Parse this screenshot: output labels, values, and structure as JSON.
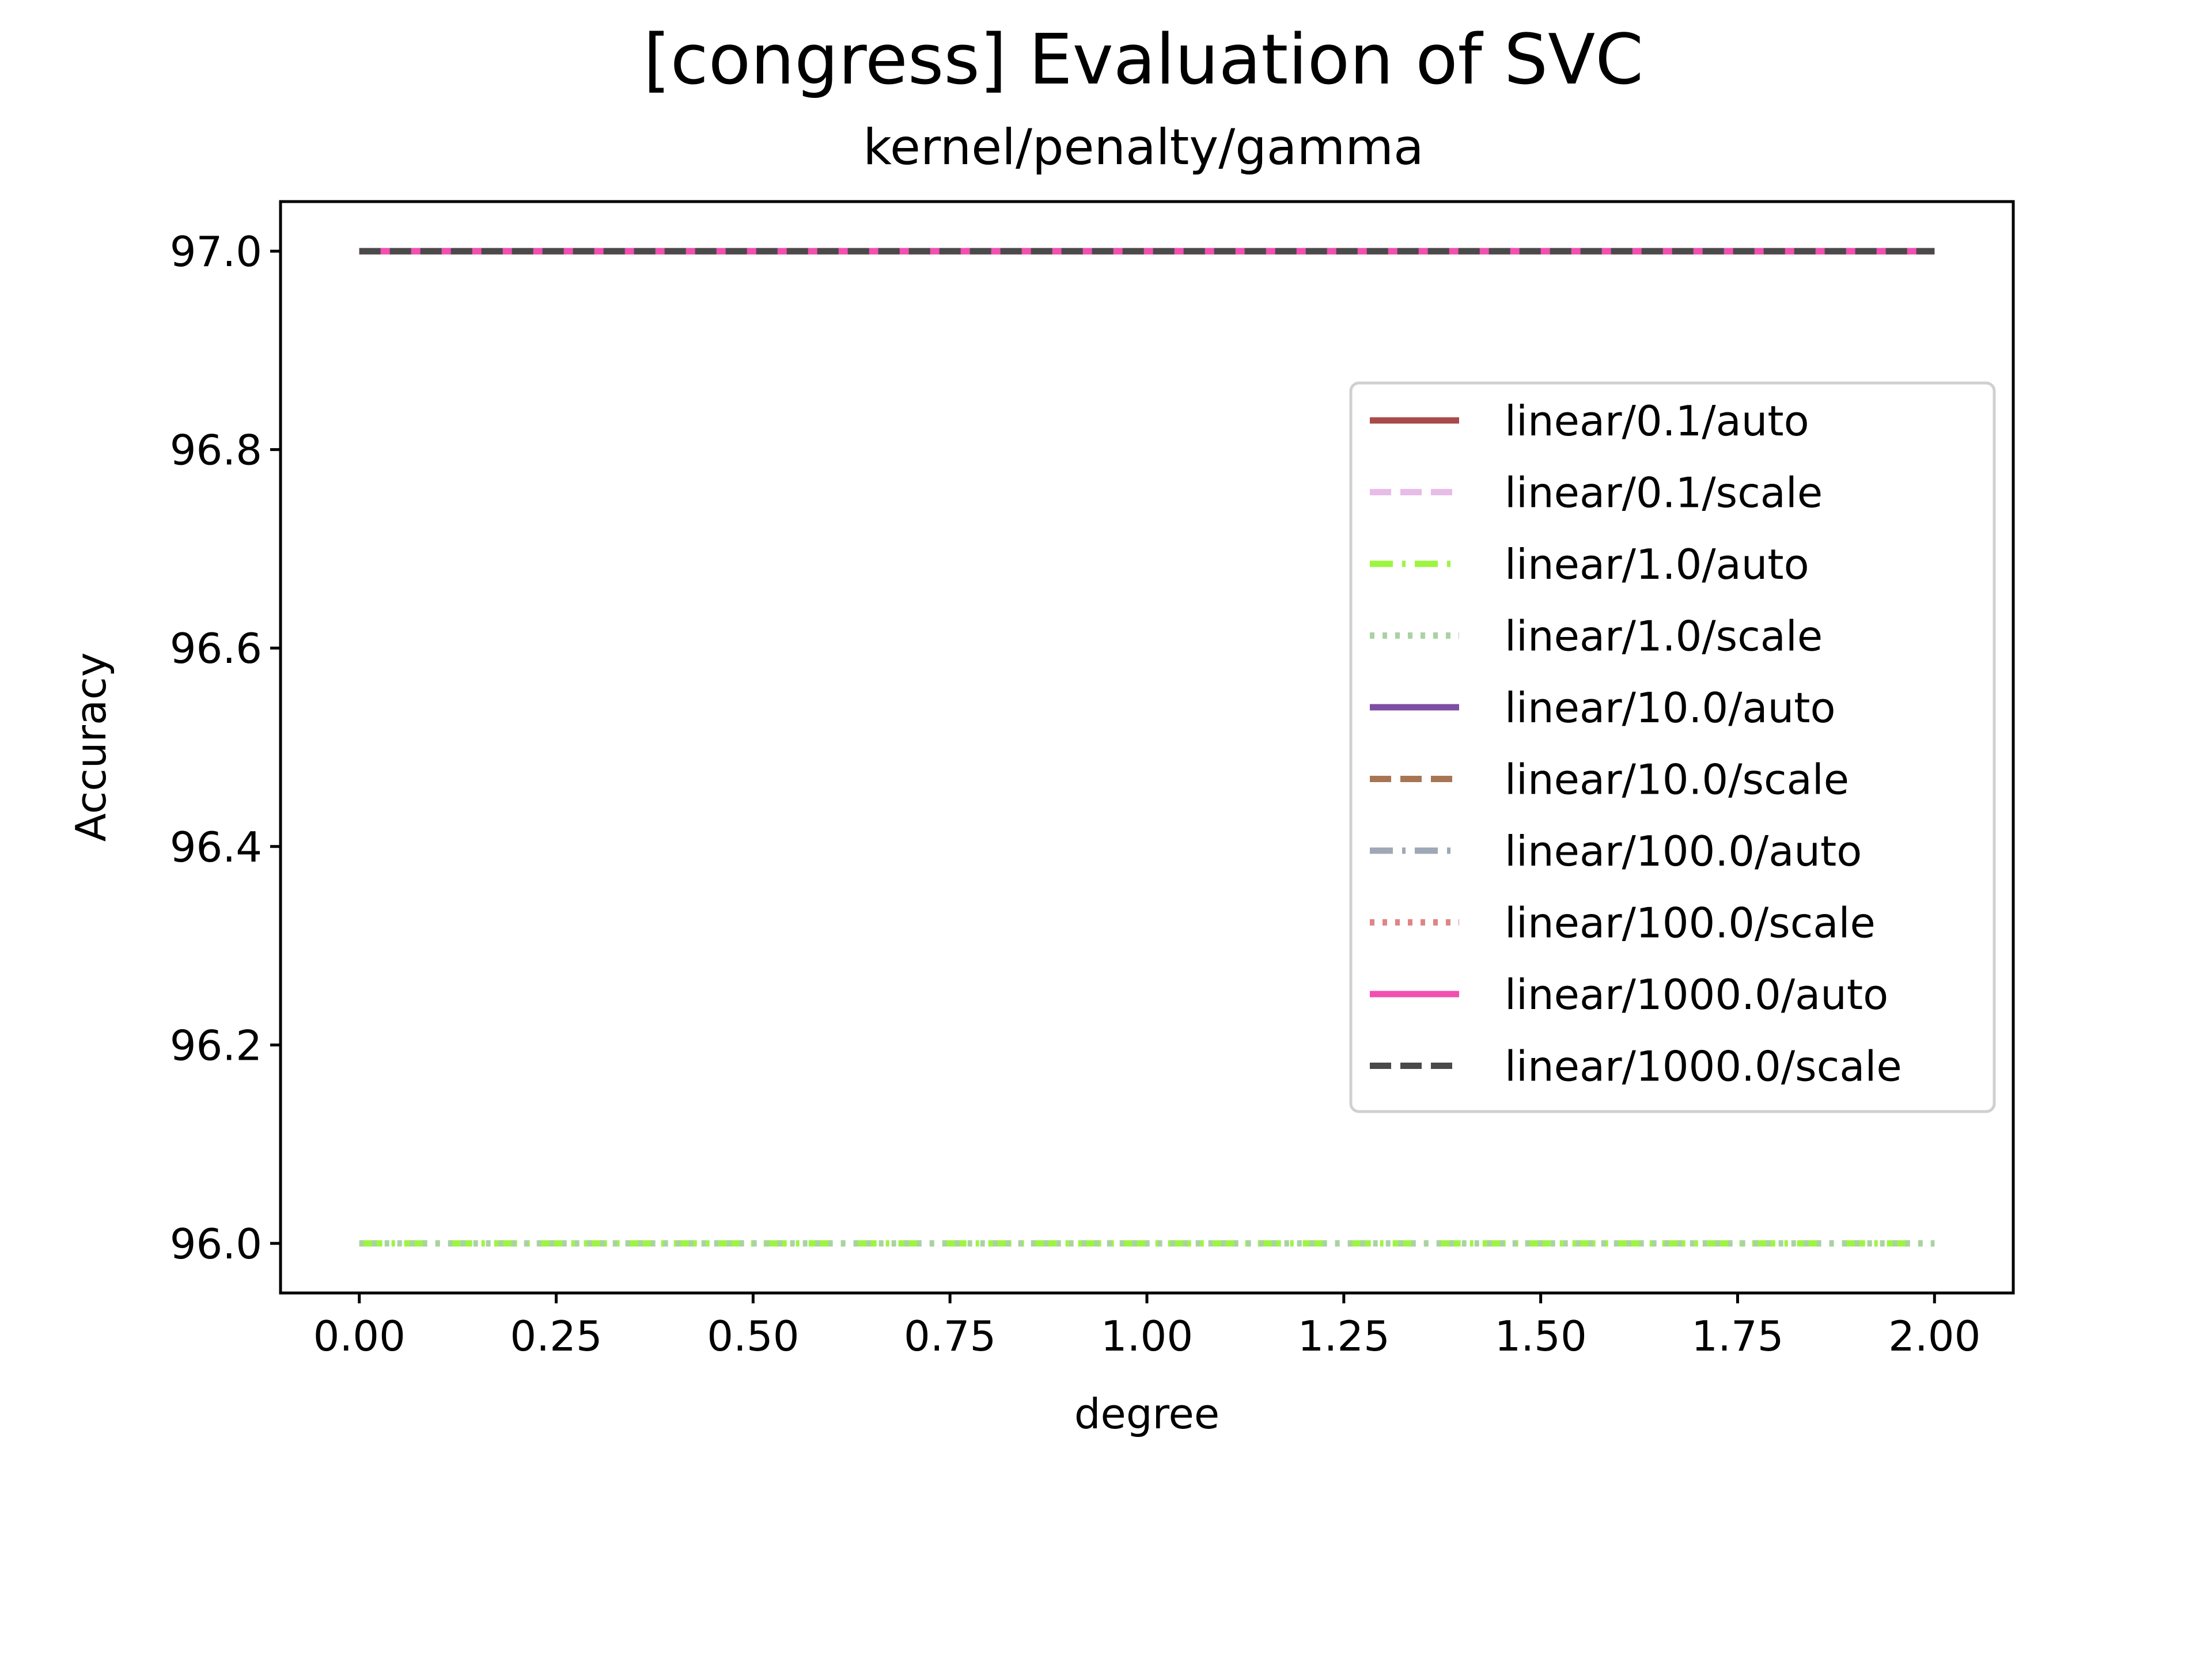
{
  "chart_data": {
    "type": "line",
    "title": "[congress] Evaluation of SVC",
    "subtitle": "kernel/penalty/gamma",
    "xlabel": "degree",
    "ylabel": "Accuracy",
    "xlim": [
      -0.1,
      2.1
    ],
    "ylim": [
      95.95,
      97.05
    ],
    "xticks": [
      "0.00",
      "0.25",
      "0.50",
      "0.75",
      "1.00",
      "1.25",
      "1.50",
      "1.75",
      "2.00"
    ],
    "yticks": [
      "96.0",
      "96.2",
      "96.4",
      "96.6",
      "96.8",
      "97.0"
    ],
    "x": [
      0,
      1,
      2
    ],
    "grid": false,
    "legend_position": "right",
    "series": [
      {
        "name": "linear/0.1/auto",
        "values": [
          97.0,
          97.0,
          97.0
        ],
        "color": "#a94a4a",
        "dash": "solid"
      },
      {
        "name": "linear/0.1/scale",
        "values": [
          97.0,
          97.0,
          97.0
        ],
        "color": "#e8bce8",
        "dash": "dashed"
      },
      {
        "name": "linear/1.0/auto",
        "values": [
          96.0,
          96.0,
          96.0
        ],
        "color": "#9df542",
        "dash": "dashdot"
      },
      {
        "name": "linear/1.0/scale",
        "values": [
          96.0,
          96.0,
          96.0
        ],
        "color": "#a9d2a3",
        "dash": "dotted"
      },
      {
        "name": "linear/10.0/auto",
        "values": [
          97.0,
          97.0,
          97.0
        ],
        "color": "#7d4ea3",
        "dash": "solid"
      },
      {
        "name": "linear/10.0/scale",
        "values": [
          97.0,
          97.0,
          97.0
        ],
        "color": "#a87554",
        "dash": "dashed"
      },
      {
        "name": "linear/100.0/auto",
        "values": [
          97.0,
          97.0,
          97.0
        ],
        "color": "#9fa8b5",
        "dash": "dashdot"
      },
      {
        "name": "linear/100.0/scale",
        "values": [
          97.0,
          97.0,
          97.0
        ],
        "color": "#e08585",
        "dash": "dotted"
      },
      {
        "name": "linear/1000.0/auto",
        "values": [
          97.0,
          97.0,
          97.0
        ],
        "color": "#f24fb0",
        "dash": "solid"
      },
      {
        "name": "linear/1000.0/scale",
        "values": [
          97.0,
          97.0,
          97.0
        ],
        "color": "#4a4a4a",
        "dash": "dashed"
      }
    ]
  }
}
